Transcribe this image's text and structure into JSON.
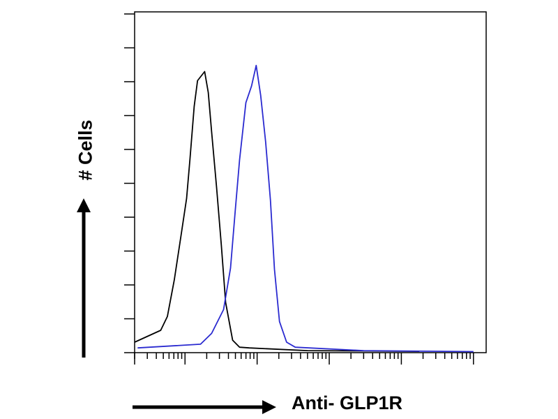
{
  "chart_data": {
    "type": "line",
    "title": "",
    "xlabel": "Anti- GLP1R",
    "ylabel": "# Cells",
    "x_scale": "log",
    "xlim": [
      2,
      150000
    ],
    "ylim": [
      0,
      100
    ],
    "x_tick_labels": [],
    "y_tick_labels": [],
    "grid": false,
    "series": [
      {
        "color": "#000000",
        "x": [
          2.0,
          4.6,
          5.7,
          7.1,
          8.9,
          10.5,
          11.7,
          13.4,
          14.9,
          18.7,
          21.0,
          23.4,
          27.4,
          31.9,
          36.6,
          45.7,
          57.1,
          78.0,
          500,
          17800
        ],
        "y": [
          3.1,
          6.6,
          10.7,
          21.5,
          35.2,
          45.5,
          57.0,
          72.7,
          80.3,
          83.0,
          76.8,
          65.2,
          48.8,
          31.8,
          14.8,
          3.7,
          1.6,
          1.4,
          0.6,
          0.4
        ]
      },
      {
        "color": "#2a2ad0",
        "x": [
          2.2,
          16.4,
          23.4,
          34.2,
          42.8,
          49.8,
          57.1,
          69.8,
          83.6,
          97.0,
          112,
          131,
          153,
          174,
          204,
          256,
          338,
          3000,
          100000
        ],
        "y": [
          1.4,
          2.5,
          5.7,
          12.7,
          25.0,
          42.0,
          57.0,
          73.8,
          78.7,
          84.8,
          76.0,
          62.3,
          45.1,
          24.6,
          9.2,
          3.1,
          1.6,
          0.6,
          0.3
        ]
      }
    ]
  }
}
